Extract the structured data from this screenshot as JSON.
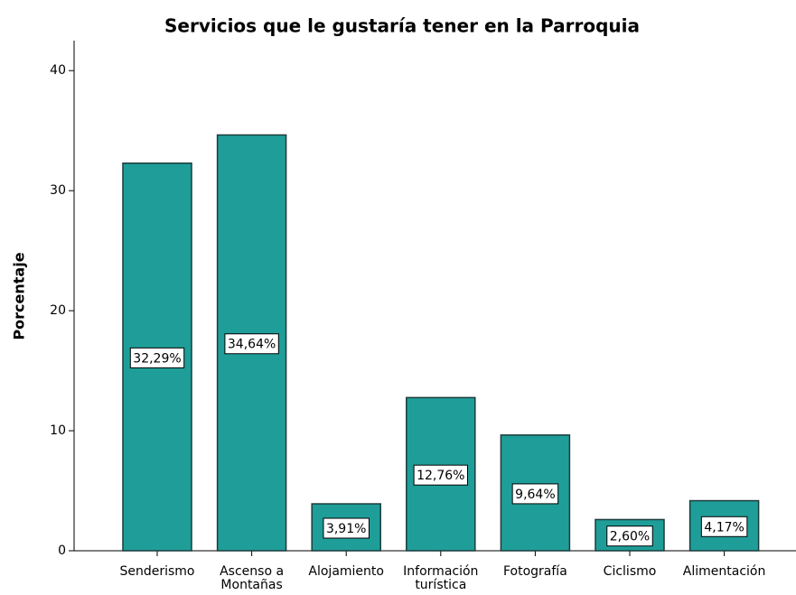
{
  "chart_data": {
    "type": "bar",
    "title": "Servicios que le gustaría tener en la Parroquia",
    "y_label": "Porcentaje",
    "categories": [
      "Senderismo",
      "Ascenso a Montañas",
      "Alojamiento",
      "Información turística",
      "Fotografía",
      "Ciclismo",
      "Alimentación"
    ],
    "values": [
      32.29,
      34.64,
      3.91,
      12.76,
      9.64,
      2.6,
      4.17
    ],
    "value_labels": [
      "32,29%",
      "34,64%",
      "3,91%",
      "12,76%",
      "9,64%",
      "2,60%",
      "4,17%"
    ],
    "color": "#1f9e99",
    "ylim": [
      0,
      42.5
    ],
    "yticks": [
      0,
      10,
      20,
      30,
      40
    ],
    "grid": false
  }
}
